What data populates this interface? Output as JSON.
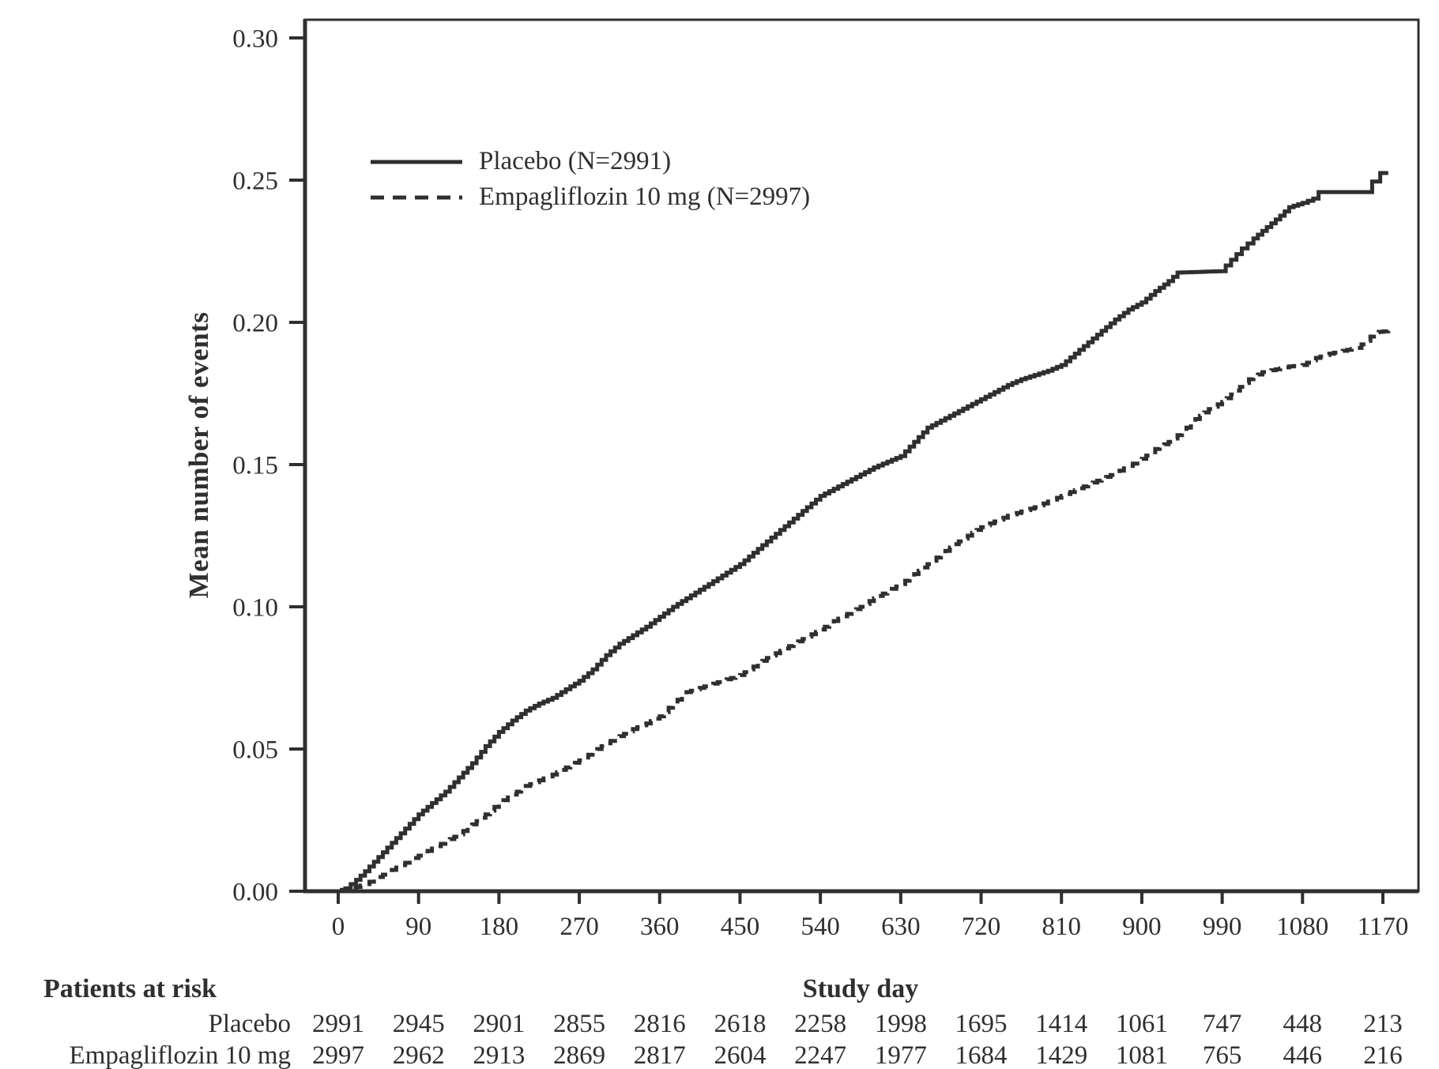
{
  "figure": {
    "background": "#ffffff",
    "ink_color": "#2f2f2f"
  },
  "chart_data": {
    "type": "line",
    "subtype": "cumulative-mean-events-step-curves",
    "title": "",
    "xlabel": "Study day",
    "ylabel": "Mean number of events",
    "xlim": [
      0,
      1170
    ],
    "ylim": [
      0.0,
      0.3
    ],
    "x_ticks": [
      0,
      90,
      180,
      270,
      360,
      450,
      540,
      630,
      720,
      810,
      900,
      990,
      1080,
      1170
    ],
    "y_tick_labels": [
      "0.00",
      "0.05",
      "0.10",
      "0.15",
      "0.20",
      "0.25",
      "0.30"
    ],
    "grid": false,
    "legend_position": "upper-left-inside",
    "series": [
      {
        "name": "Placebo (N=2991)",
        "style": "solid",
        "step": true,
        "points": [
          [
            0,
            0
          ],
          [
            8,
            0.001
          ],
          [
            20,
            0.004
          ],
          [
            30,
            0.007
          ],
          [
            45,
            0.012
          ],
          [
            60,
            0.017
          ],
          [
            75,
            0.022
          ],
          [
            90,
            0.027
          ],
          [
            105,
            0.031
          ],
          [
            120,
            0.035
          ],
          [
            135,
            0.04
          ],
          [
            150,
            0.045
          ],
          [
            165,
            0.051
          ],
          [
            180,
            0.056
          ],
          [
            195,
            0.06
          ],
          [
            210,
            0.0635
          ],
          [
            225,
            0.066
          ],
          [
            240,
            0.068
          ],
          [
            255,
            0.071
          ],
          [
            270,
            0.074
          ],
          [
            285,
            0.078
          ],
          [
            300,
            0.083
          ],
          [
            315,
            0.087
          ],
          [
            330,
            0.09
          ],
          [
            345,
            0.093
          ],
          [
            360,
            0.0965
          ],
          [
            375,
            0.1
          ],
          [
            390,
            0.103
          ],
          [
            405,
            0.106
          ],
          [
            420,
            0.109
          ],
          [
            435,
            0.112
          ],
          [
            450,
            0.115
          ],
          [
            465,
            0.119
          ],
          [
            480,
            0.123
          ],
          [
            495,
            0.127
          ],
          [
            510,
            0.131
          ],
          [
            525,
            0.135
          ],
          [
            540,
            0.139
          ],
          [
            555,
            0.1415
          ],
          [
            570,
            0.144
          ],
          [
            585,
            0.1465
          ],
          [
            600,
            0.149
          ],
          [
            615,
            0.151
          ],
          [
            630,
            0.153
          ],
          [
            645,
            0.158
          ],
          [
            660,
            0.163
          ],
          [
            675,
            0.1655
          ],
          [
            690,
            0.168
          ],
          [
            705,
            0.1705
          ],
          [
            720,
            0.173
          ],
          [
            735,
            0.1755
          ],
          [
            750,
            0.178
          ],
          [
            765,
            0.18
          ],
          [
            780,
            0.1815
          ],
          [
            795,
            0.183
          ],
          [
            810,
            0.185
          ],
          [
            825,
            0.189
          ],
          [
            840,
            0.193
          ],
          [
            855,
            0.197
          ],
          [
            870,
            0.201
          ],
          [
            885,
            0.2045
          ],
          [
            900,
            0.207
          ],
          [
            915,
            0.211
          ],
          [
            930,
            0.2145
          ],
          [
            940,
            0.2175
          ],
          [
            988,
            0.218
          ],
          [
            1000,
            0.222
          ],
          [
            1012,
            0.226
          ],
          [
            1025,
            0.2295
          ],
          [
            1040,
            0.2335
          ],
          [
            1055,
            0.2375
          ],
          [
            1065,
            0.2405
          ],
          [
            1080,
            0.242
          ],
          [
            1092,
            0.2435
          ],
          [
            1098,
            0.2458
          ],
          [
            1152,
            0.2458
          ],
          [
            1158,
            0.2495
          ],
          [
            1165,
            0.2495
          ],
          [
            1167,
            0.2525
          ],
          [
            1176,
            0.2525
          ]
        ]
      },
      {
        "name": "Empagliflozin 10 mg (N=2997)",
        "style": "dashed",
        "step": true,
        "points": [
          [
            0,
            0
          ],
          [
            15,
            0.001
          ],
          [
            30,
            0.0025
          ],
          [
            45,
            0.005
          ],
          [
            60,
            0.0075
          ],
          [
            75,
            0.01
          ],
          [
            90,
            0.0125
          ],
          [
            105,
            0.015
          ],
          [
            120,
            0.0175
          ],
          [
            135,
            0.02
          ],
          [
            150,
            0.0235
          ],
          [
            165,
            0.027
          ],
          [
            180,
            0.031
          ],
          [
            195,
            0.034
          ],
          [
            210,
            0.037
          ],
          [
            225,
            0.039
          ],
          [
            240,
            0.041
          ],
          [
            255,
            0.0435
          ],
          [
            270,
            0.046
          ],
          [
            285,
            0.049
          ],
          [
            300,
            0.052
          ],
          [
            315,
            0.0545
          ],
          [
            330,
            0.057
          ],
          [
            345,
            0.059
          ],
          [
            360,
            0.0615
          ],
          [
            375,
            0.066
          ],
          [
            390,
            0.07
          ],
          [
            405,
            0.0715
          ],
          [
            420,
            0.073
          ],
          [
            435,
            0.0745
          ],
          [
            450,
            0.076
          ],
          [
            465,
            0.079
          ],
          [
            480,
            0.082
          ],
          [
            495,
            0.0845
          ],
          [
            510,
            0.087
          ],
          [
            525,
            0.0895
          ],
          [
            540,
            0.092
          ],
          [
            555,
            0.095
          ],
          [
            570,
            0.0975
          ],
          [
            585,
            0.1
          ],
          [
            600,
            0.103
          ],
          [
            615,
            0.1055
          ],
          [
            630,
            0.108
          ],
          [
            645,
            0.1115
          ],
          [
            660,
            0.115
          ],
          [
            675,
            0.1185
          ],
          [
            690,
            0.122
          ],
          [
            705,
            0.125
          ],
          [
            720,
            0.128
          ],
          [
            735,
            0.13
          ],
          [
            750,
            0.132
          ],
          [
            765,
            0.1335
          ],
          [
            780,
            0.135
          ],
          [
            795,
            0.137
          ],
          [
            810,
            0.139
          ],
          [
            825,
            0.141
          ],
          [
            840,
            0.143
          ],
          [
            855,
            0.145
          ],
          [
            870,
            0.147
          ],
          [
            885,
            0.1495
          ],
          [
            900,
            0.152
          ],
          [
            915,
            0.1555
          ],
          [
            930,
            0.158
          ],
          [
            945,
            0.1615
          ],
          [
            960,
            0.166
          ],
          [
            975,
            0.1695
          ],
          [
            990,
            0.172
          ],
          [
            1005,
            0.176
          ],
          [
            1020,
            0.18
          ],
          [
            1035,
            0.1825
          ],
          [
            1050,
            0.1835
          ],
          [
            1065,
            0.1845
          ],
          [
            1080,
            0.185
          ],
          [
            1095,
            0.1875
          ],
          [
            1110,
            0.189
          ],
          [
            1125,
            0.19
          ],
          [
            1140,
            0.191
          ],
          [
            1152,
            0.1935
          ],
          [
            1160,
            0.1965
          ],
          [
            1176,
            0.197
          ]
        ]
      }
    ]
  },
  "at_risk_table": {
    "title": "Patients at risk",
    "rows": [
      {
        "label": "Placebo",
        "counts": [
          2991,
          2945,
          2901,
          2855,
          2816,
          2618,
          2258,
          1998,
          1695,
          1414,
          1061,
          747,
          448,
          213
        ]
      },
      {
        "label": "Empagliflozin 10 mg",
        "counts": [
          2997,
          2962,
          2913,
          2869,
          2817,
          2604,
          2247,
          1977,
          1684,
          1429,
          1081,
          765,
          446,
          216
        ]
      }
    ]
  }
}
